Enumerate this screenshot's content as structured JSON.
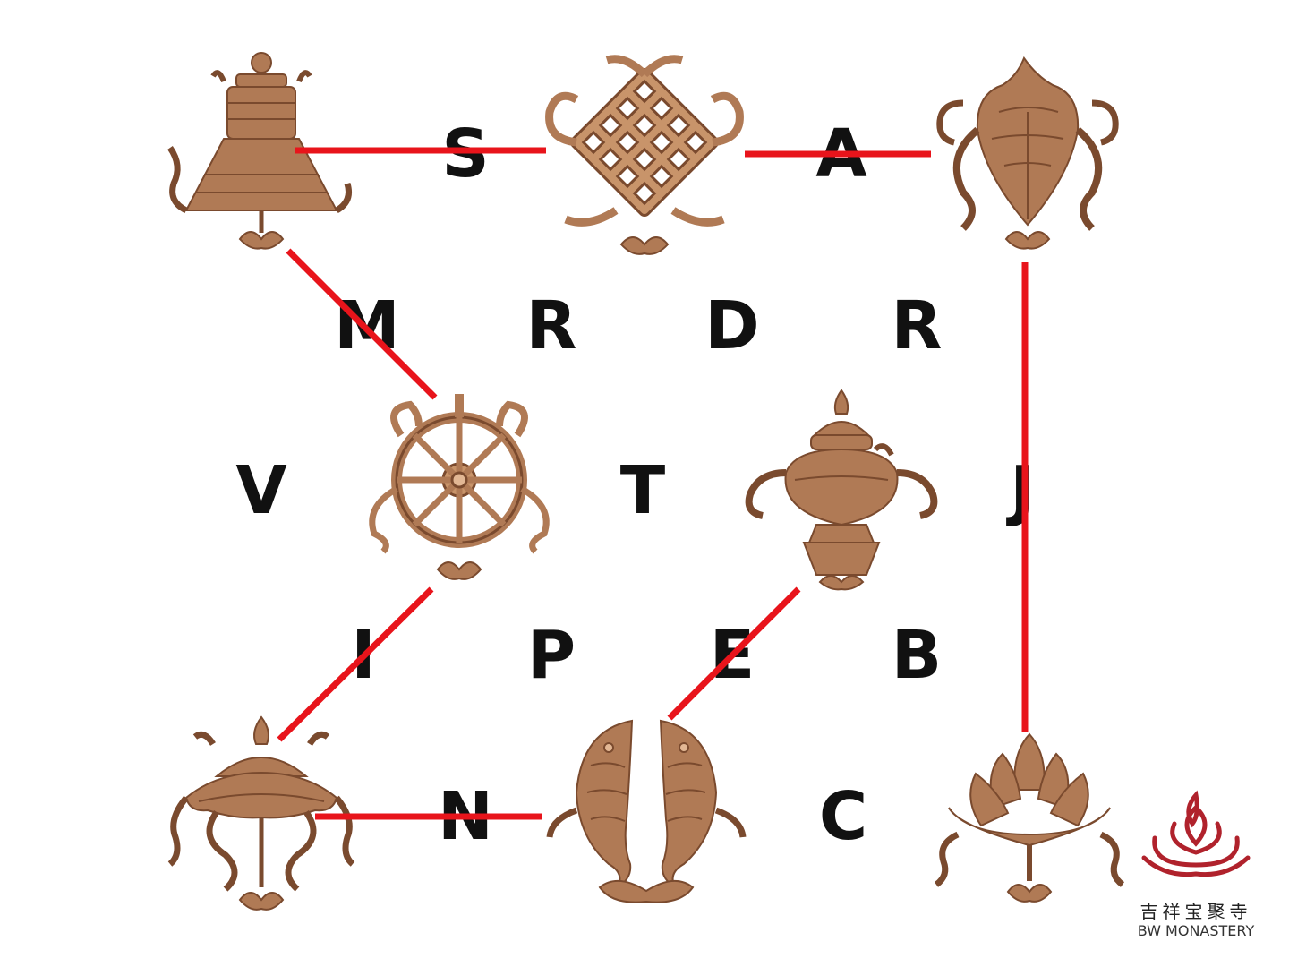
{
  "letters": {
    "s": "S",
    "a": "A",
    "m": "M",
    "r1": "R",
    "d": "D",
    "r2": "R",
    "v": "V",
    "t": "T",
    "j": "J",
    "i": "I",
    "p": "P",
    "e": "E",
    "b": "B",
    "n": "N",
    "c": "C"
  },
  "symbols": [
    "victory-banner",
    "endless-knot",
    "conch-shell",
    "dharma-wheel",
    "treasure-vase",
    "parasol",
    "golden-fish",
    "lotus"
  ],
  "colors": {
    "line": "#e8141b",
    "letter": "#111111",
    "bronze": "#b07a55",
    "bronze_dark": "#7a4a2e",
    "bronze_light": "#e2b794",
    "logo": "#b0222c"
  },
  "logo": {
    "chinese": "吉祥宝聚寺",
    "english": "BW MONASTERY"
  }
}
